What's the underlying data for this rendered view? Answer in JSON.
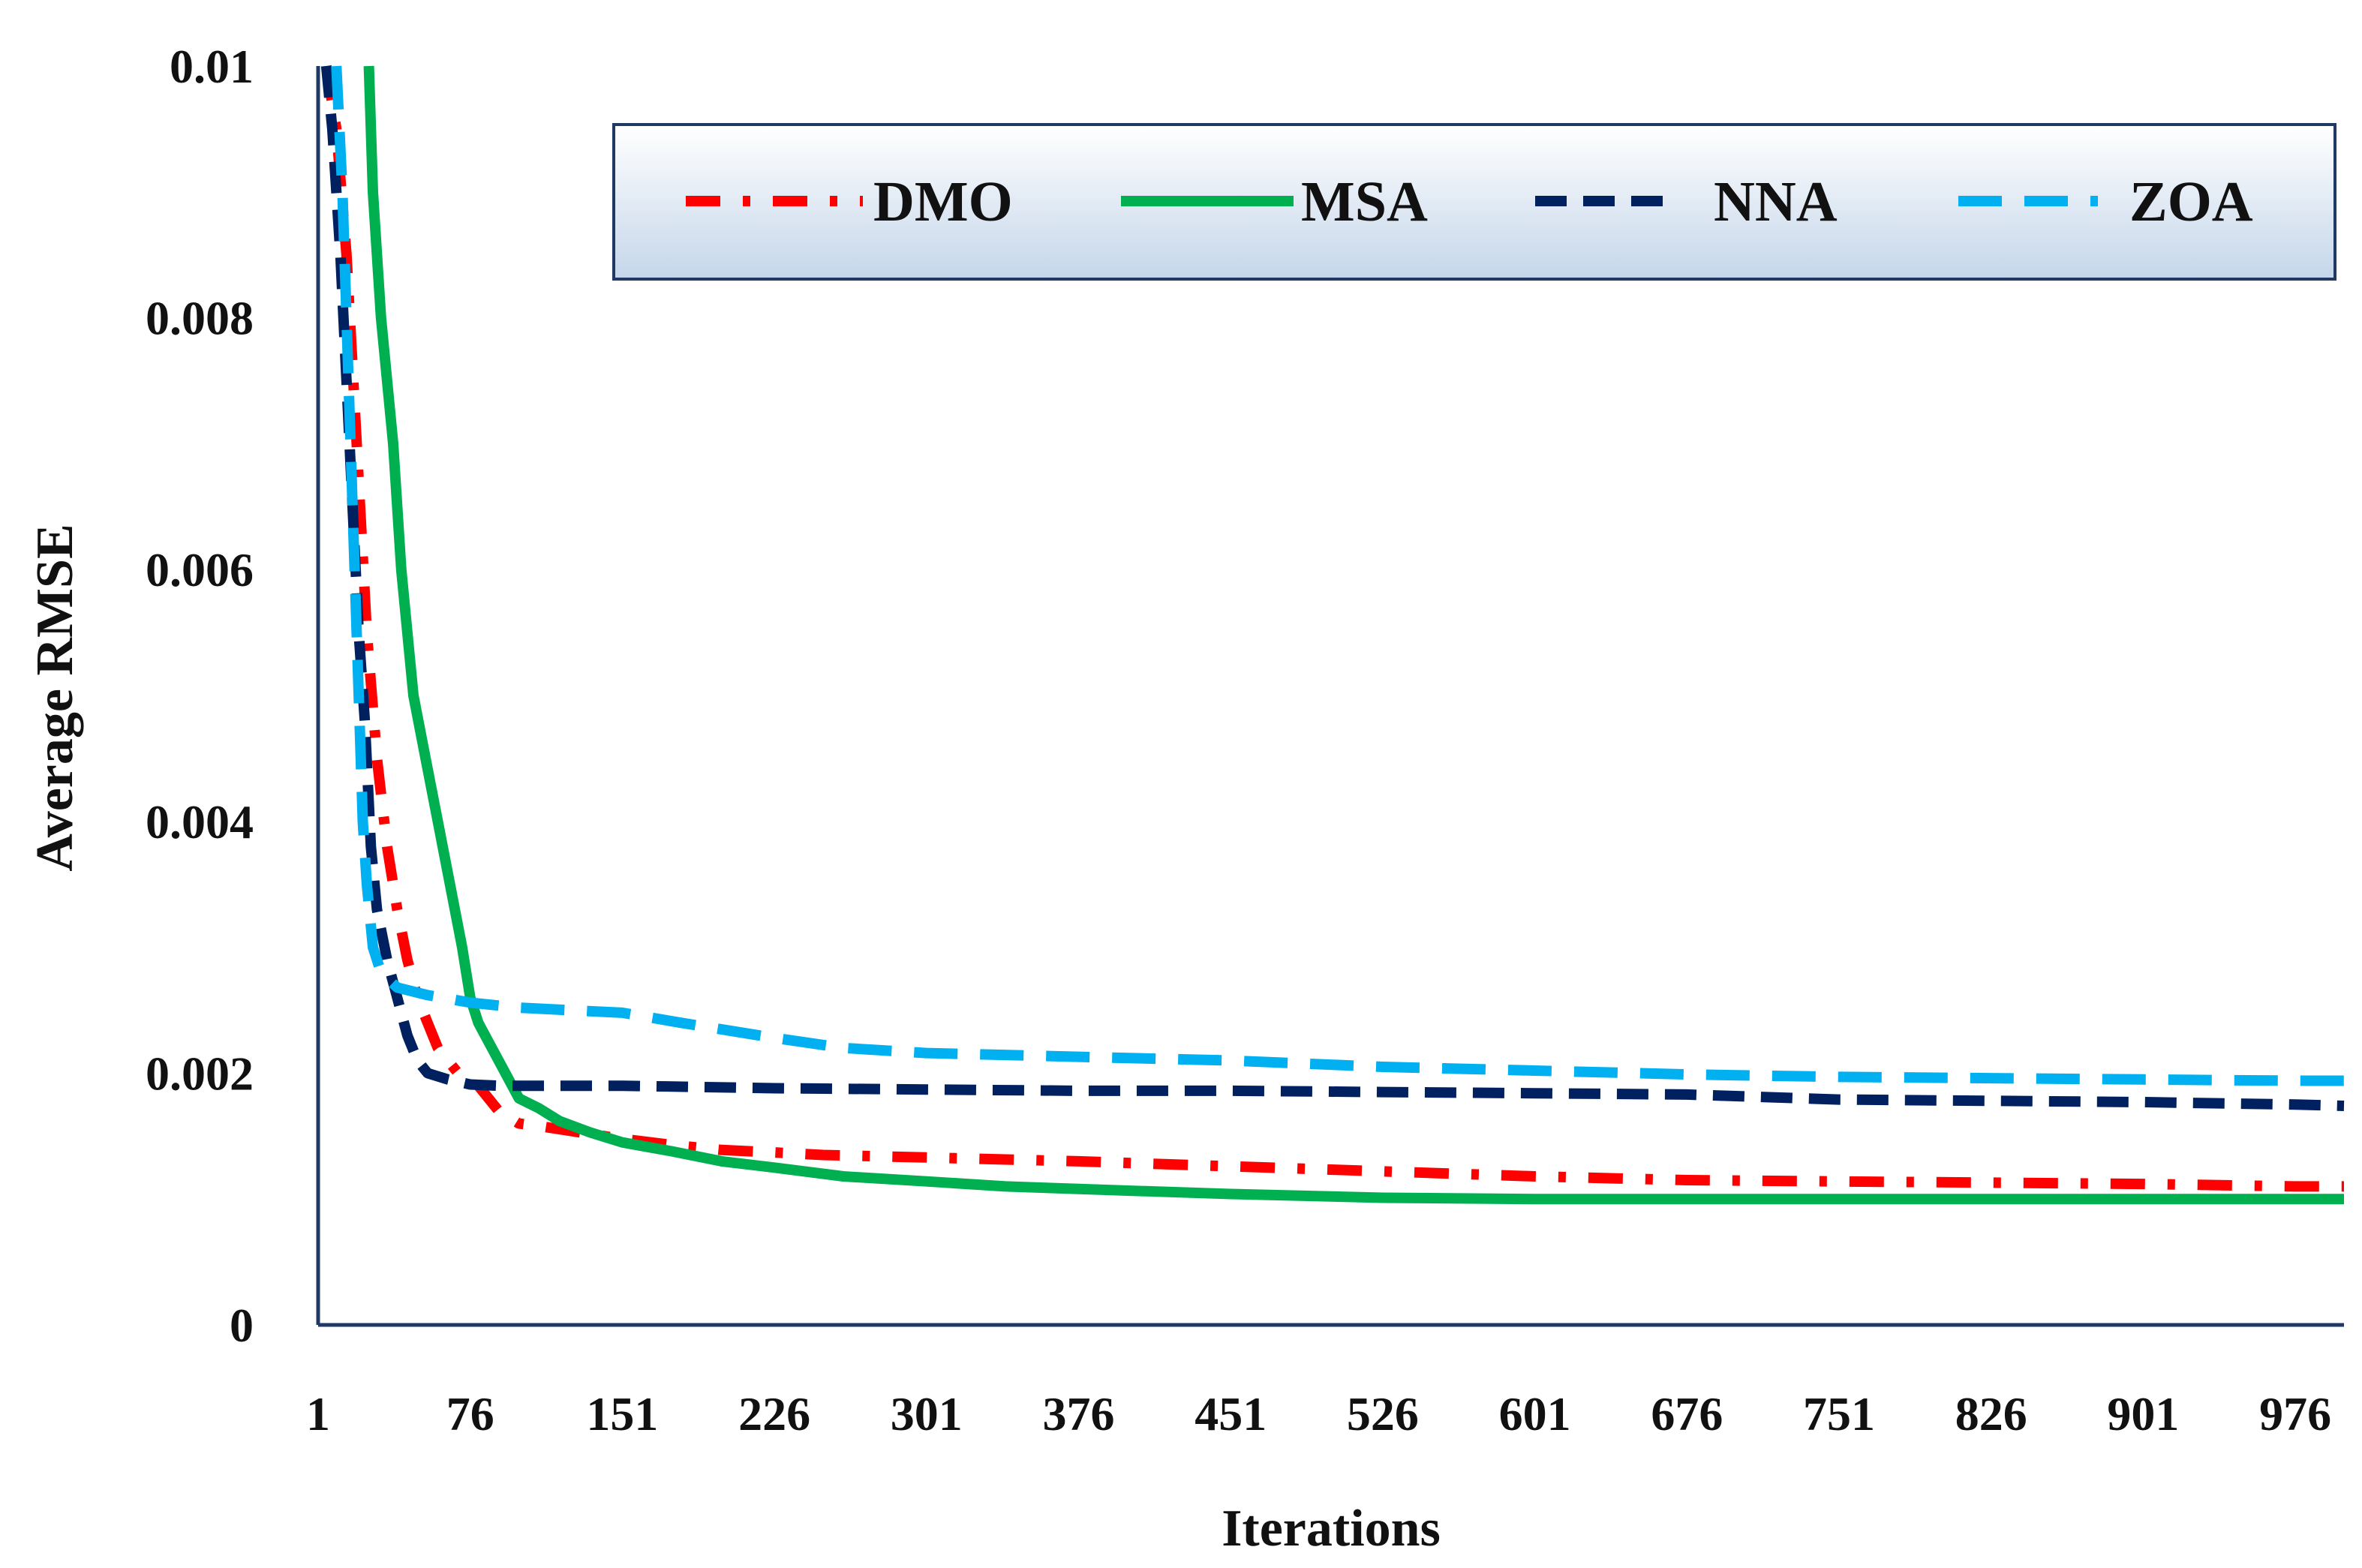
{
  "chart_data": {
    "type": "line",
    "title": "",
    "xlabel": "Iterations",
    "ylabel": "Average RMSE",
    "xlim": [
      1,
      1000
    ],
    "ylim": [
      0,
      0.01
    ],
    "x_ticks": [
      1,
      76,
      151,
      226,
      301,
      376,
      451,
      526,
      601,
      676,
      751,
      826,
      901,
      976
    ],
    "x_tick_labels": [
      "1",
      "76",
      "151",
      "226",
      "301",
      "376",
      "451",
      "526",
      "601",
      "676",
      "751",
      "826",
      "901",
      "976"
    ],
    "y_ticks": [
      0,
      0.002,
      0.004,
      0.006,
      0.008,
      0.01
    ],
    "y_tick_labels": [
      "0",
      "0.002",
      "0.004",
      "0.006",
      "0.008",
      "0.01"
    ],
    "grid": false,
    "legend_position": "top-right",
    "series": [
      {
        "name": "DMO",
        "color": "#ff0000",
        "style": "dash-dot",
        "points": [
          [
            5,
            0.01
          ],
          [
            10,
            0.0095
          ],
          [
            15,
            0.0085
          ],
          [
            20,
            0.007
          ],
          [
            25,
            0.0055
          ],
          [
            30,
            0.0045
          ],
          [
            35,
            0.0038
          ],
          [
            40,
            0.0033
          ],
          [
            45,
            0.0029
          ],
          [
            50,
            0.0026
          ],
          [
            55,
            0.0024
          ],
          [
            60,
            0.0022
          ],
          [
            70,
            0.002
          ],
          [
            80,
            0.0019
          ],
          [
            90,
            0.0017
          ],
          [
            100,
            0.0016
          ],
          [
            110,
            0.00158
          ],
          [
            130,
            0.00153
          ],
          [
            150,
            0.00148
          ],
          [
            175,
            0.00143
          ],
          [
            200,
            0.00139
          ],
          [
            226,
            0.00137
          ],
          [
            250,
            0.00135
          ],
          [
            301,
            0.00133
          ],
          [
            376,
            0.0013
          ],
          [
            451,
            0.00126
          ],
          [
            526,
            0.00122
          ],
          [
            601,
            0.00118
          ],
          [
            676,
            0.00115
          ],
          [
            751,
            0.00114
          ],
          [
            826,
            0.00113
          ],
          [
            901,
            0.00112
          ],
          [
            976,
            0.0011
          ],
          [
            1000,
            0.0011
          ]
        ]
      },
      {
        "name": "MSA",
        "color": "#00b050",
        "style": "solid",
        "points": [
          [
            26,
            0.01
          ],
          [
            28,
            0.009
          ],
          [
            32,
            0.008
          ],
          [
            38,
            0.007
          ],
          [
            42,
            0.006
          ],
          [
            48,
            0.005
          ],
          [
            54,
            0.0045
          ],
          [
            60,
            0.004
          ],
          [
            66,
            0.0035
          ],
          [
            72,
            0.003
          ],
          [
            76,
            0.0026
          ],
          [
            80,
            0.0024
          ],
          [
            90,
            0.0021
          ],
          [
            100,
            0.0018
          ],
          [
            110,
            0.00172
          ],
          [
            120,
            0.00162
          ],
          [
            135,
            0.00153
          ],
          [
            151,
            0.00145
          ],
          [
            175,
            0.00138
          ],
          [
            200,
            0.0013
          ],
          [
            226,
            0.00125
          ],
          [
            260,
            0.00118
          ],
          [
            301,
            0.00114
          ],
          [
            340,
            0.0011
          ],
          [
            376,
            0.00108
          ],
          [
            451,
            0.00104
          ],
          [
            526,
            0.00101
          ],
          [
            601,
            0.001
          ],
          [
            676,
            0.001
          ],
          [
            751,
            0.001
          ],
          [
            826,
            0.001
          ],
          [
            901,
            0.001
          ],
          [
            976,
            0.001
          ],
          [
            1000,
            0.001
          ]
        ]
      },
      {
        "name": "NNA",
        "color": "#002060",
        "style": "dash",
        "points": [
          [
            5,
            0.01
          ],
          [
            8,
            0.0095
          ],
          [
            12,
            0.0085
          ],
          [
            15,
            0.0075
          ],
          [
            18,
            0.0065
          ],
          [
            21,
            0.0055
          ],
          [
            24,
            0.0048
          ],
          [
            27,
            0.0038
          ],
          [
            30,
            0.0033
          ],
          [
            35,
            0.0029
          ],
          [
            40,
            0.0026
          ],
          [
            45,
            0.0023
          ],
          [
            50,
            0.0021
          ],
          [
            55,
            0.002
          ],
          [
            65,
            0.00195
          ],
          [
            76,
            0.00191
          ],
          [
            90,
            0.0019
          ],
          [
            151,
            0.0019
          ],
          [
            226,
            0.00188
          ],
          [
            301,
            0.00187
          ],
          [
            376,
            0.00186
          ],
          [
            451,
            0.00186
          ],
          [
            526,
            0.00185
          ],
          [
            601,
            0.00184
          ],
          [
            676,
            0.00183
          ],
          [
            751,
            0.00179
          ],
          [
            826,
            0.00178
          ],
          [
            901,
            0.00177
          ],
          [
            976,
            0.00175
          ],
          [
            1000,
            0.00174
          ]
        ]
      },
      {
        "name": "ZOA",
        "color": "#00b0f0",
        "style": "long-dash",
        "points": [
          [
            10,
            0.01
          ],
          [
            13,
            0.009
          ],
          [
            15,
            0.008
          ],
          [
            17,
            0.007
          ],
          [
            19,
            0.006
          ],
          [
            21,
            0.005
          ],
          [
            23,
            0.004
          ],
          [
            25,
            0.0035
          ],
          [
            28,
            0.003
          ],
          [
            32,
            0.0028
          ],
          [
            40,
            0.00268
          ],
          [
            55,
            0.00262
          ],
          [
            76,
            0.00256
          ],
          [
            100,
            0.00252
          ],
          [
            151,
            0.00248
          ],
          [
            180,
            0.0024
          ],
          [
            226,
            0.00228
          ],
          [
            260,
            0.0022
          ],
          [
            301,
            0.00216
          ],
          [
            376,
            0.00213
          ],
          [
            451,
            0.0021
          ],
          [
            526,
            0.00205
          ],
          [
            601,
            0.00202
          ],
          [
            676,
            0.00199
          ],
          [
            751,
            0.00197
          ],
          [
            826,
            0.00196
          ],
          [
            901,
            0.00195
          ],
          [
            976,
            0.00194
          ],
          [
            1000,
            0.00194
          ]
        ]
      }
    ]
  }
}
